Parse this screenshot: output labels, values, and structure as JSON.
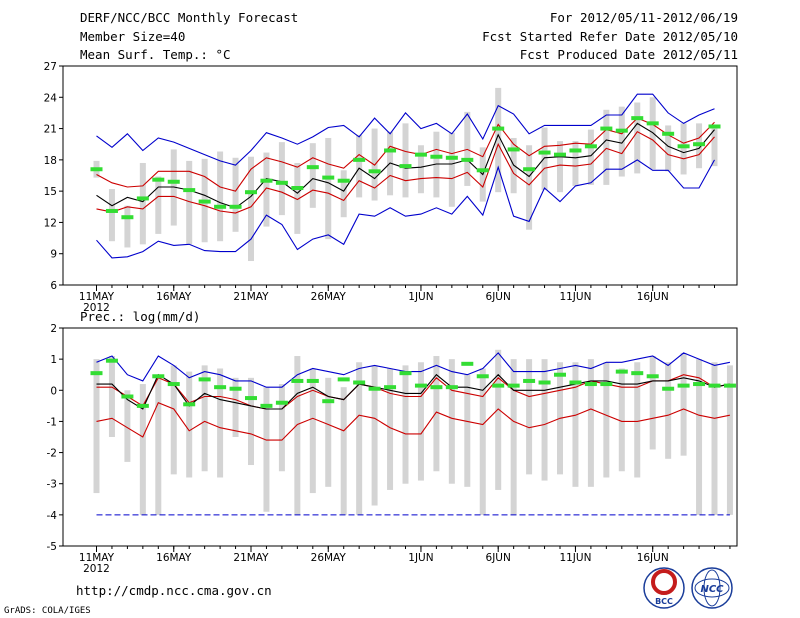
{
  "header": {
    "title": "DERF/NCC/BCC Monthly Forecast",
    "member_size": "Member Size=40",
    "temp_label": "Mean Surf. Temp.: °C",
    "period": "For 2012/05/11-2012/06/19",
    "started": "Fcst Started Refer Date 2012/05/10",
    "produced": "Fcst Produced Date 2012/05/11"
  },
  "footer": {
    "url": "http://cmdp.ncc.cma.gov.cn",
    "grads": "GrADS: COLA/IGES",
    "logo1_text": "BCC",
    "logo2_text": "NCC"
  },
  "colors": {
    "max_line": "#0000cc",
    "p_lines": "#cc0000",
    "mean": "#000000",
    "bars": "#d4d4d4",
    "obs": "#33dd33"
  },
  "chart_data": [
    {
      "type": "line",
      "title": "Mean Surf. Temp.: °C",
      "ylim": [
        6,
        27
      ],
      "yticks": [
        6,
        9,
        12,
        15,
        18,
        21,
        24,
        27
      ],
      "xtick_labels": [
        {
          "day": 1,
          "label": "11MAY",
          "sub": "2012"
        },
        {
          "day": 6,
          "label": "16MAY"
        },
        {
          "day": 11,
          "label": "21MAY"
        },
        {
          "day": 16,
          "label": "26MAY"
        },
        {
          "day": 22,
          "label": "1JUN"
        },
        {
          "day": 27,
          "label": "6JUN"
        },
        {
          "day": 32,
          "label": "11JUN"
        },
        {
          "day": 37,
          "label": "16JUN"
        }
      ],
      "series": [
        {
          "name": "max",
          "color": "blue",
          "values": [
            20.3,
            19.2,
            20.5,
            18.9,
            20.1,
            19.7,
            19.1,
            18.5,
            17.9,
            17.5,
            18.9,
            20.6,
            20.1,
            19.5,
            20.2,
            21.1,
            21.3,
            20.2,
            22.0,
            20.5,
            22.5,
            21.0,
            21.5,
            20.5,
            22.4,
            20.0,
            23.2,
            22.4,
            20.5,
            21.3,
            21.3,
            21.3,
            21.3,
            22.3,
            22.3,
            24.3,
            24.3,
            22.5,
            21.5,
            22.3,
            22.9
          ]
        },
        {
          "name": "p_high",
          "color": "red",
          "values": [
            16.6,
            15.8,
            15.4,
            15.5,
            16.9,
            16.9,
            16.9,
            16.4,
            15.4,
            15.0,
            17.1,
            18.2,
            17.8,
            17.3,
            18.2,
            17.6,
            17.2,
            18.5,
            17.5,
            19.3,
            18.8,
            18.5,
            19.0,
            18.6,
            19.0,
            18.3,
            21.4,
            19.5,
            18.4,
            19.3,
            19.4,
            19.6,
            19.5,
            20.9,
            20.5,
            22.0,
            21.4,
            20.4,
            19.6,
            20.1,
            21.6
          ]
        },
        {
          "name": "mean",
          "color": "black",
          "values": [
            14.6,
            13.6,
            14.4,
            14.0,
            15.4,
            15.4,
            15.1,
            14.6,
            13.9,
            13.4,
            14.5,
            16.2,
            15.9,
            14.8,
            16.2,
            15.8,
            15.0,
            17.2,
            16.2,
            17.7,
            17.2,
            17.3,
            17.6,
            17.6,
            18.0,
            16.6,
            20.4,
            17.5,
            16.4,
            18.2,
            18.3,
            18.2,
            18.4,
            19.9,
            19.6,
            21.5,
            20.6,
            19.3,
            18.7,
            19.1,
            20.9
          ]
        },
        {
          "name": "p_low",
          "color": "red",
          "values": [
            13.3,
            13.0,
            13.5,
            13.3,
            14.5,
            14.5,
            14.0,
            13.6,
            13.1,
            12.9,
            13.5,
            15.3,
            14.9,
            14.2,
            15.1,
            14.8,
            14.1,
            16.0,
            15.3,
            16.5,
            16.0,
            16.2,
            16.3,
            16.2,
            16.8,
            15.4,
            19.5,
            16.7,
            15.6,
            17.2,
            17.5,
            17.4,
            17.6,
            19.1,
            18.6,
            20.7,
            19.9,
            18.5,
            18.1,
            18.5,
            20.2
          ]
        },
        {
          "name": "min",
          "color": "blue",
          "values": [
            10.3,
            8.6,
            8.7,
            9.2,
            10.2,
            9.8,
            9.9,
            9.3,
            9.2,
            9.2,
            10.4,
            12.7,
            11.8,
            9.4,
            10.4,
            10.8,
            9.9,
            12.8,
            12.6,
            13.4,
            12.6,
            12.8,
            13.4,
            12.8,
            14.5,
            12.7,
            17.3,
            12.6,
            12.1,
            15.3,
            14.0,
            15.5,
            15.8,
            17.1,
            17.1,
            18.0,
            17.0,
            17.0,
            15.3,
            15.3,
            18.0
          ]
        }
      ],
      "bars": {
        "low": [
          16.3,
          10.2,
          9.6,
          9.9,
          10.9,
          11.7,
          9.9,
          10.1,
          10.2,
          11.1,
          8.3,
          11.6,
          12.7,
          10.9,
          13.4,
          10.4,
          12.5,
          14.4,
          14.1,
          14.6,
          14.4,
          14.8,
          14.4,
          13.5,
          15.5,
          14.0,
          14.9,
          14.8,
          11.3,
          15.1,
          14.9,
          15.5,
          15.6,
          15.6,
          16.4,
          16.7,
          17.1,
          16.9,
          16.6,
          17.2,
          17.4
        ],
        "high": [
          17.9,
          15.2,
          13.6,
          17.7,
          16.4,
          19.0,
          17.9,
          18.1,
          18.8,
          18.2,
          18.3,
          18.7,
          19.7,
          17.7,
          19.6,
          20.1,
          17.0,
          20.4,
          21.0,
          20.7,
          21.5,
          19.4,
          20.7,
          20.6,
          22.6,
          19.2,
          24.9,
          20.1,
          19.4,
          21.1,
          19.8,
          19.8,
          20.9,
          22.8,
          23.1,
          23.5,
          24.0,
          21.3,
          21.5,
          21.5,
          21.0
        ]
      },
      "obs": [
        17.1,
        13.1,
        12.5,
        14.3,
        16.1,
        15.9,
        15.1,
        14.0,
        13.5,
        13.5,
        14.9,
        16.0,
        15.8,
        15.3,
        17.3,
        16.3,
        16.0,
        18.0,
        16.9,
        18.9,
        17.4,
        18.5,
        18.3,
        18.2,
        18.0,
        17.0,
        21.0,
        19.0,
        17.1,
        18.7,
        18.5,
        18.9,
        19.3,
        21.0,
        20.8,
        22.0,
        21.5,
        20.5,
        19.3,
        19.5,
        21.2
      ]
    },
    {
      "type": "line",
      "title": "Prec.: log(mm/d)",
      "ylim": [
        -5,
        2
      ],
      "yticks": [
        -5,
        -4,
        -3,
        -2,
        -1,
        0,
        1,
        2
      ],
      "xtick_labels": [
        {
          "day": 1,
          "label": "11MAY",
          "sub": "2012"
        },
        {
          "day": 6,
          "label": "16MAY"
        },
        {
          "day": 11,
          "label": "21MAY"
        },
        {
          "day": 16,
          "label": "26MAY"
        },
        {
          "day": 22,
          "label": "1JUN"
        },
        {
          "day": 27,
          "label": "6JUN"
        },
        {
          "day": 32,
          "label": "11JUN"
        },
        {
          "day": 37,
          "label": "16JUN"
        }
      ],
      "series": [
        {
          "name": "max",
          "color": "blue",
          "values": [
            0.9,
            1.1,
            0.5,
            0.3,
            1.1,
            0.8,
            0.4,
            0.6,
            0.5,
            0.3,
            0.3,
            0.1,
            0.1,
            0.5,
            0.7,
            0.6,
            0.5,
            0.7,
            0.8,
            0.7,
            0.6,
            0.6,
            0.8,
            0.6,
            0.5,
            0.7,
            1.2,
            0.6,
            0.6,
            0.6,
            0.7,
            0.8,
            0.7,
            0.9,
            0.9,
            1.0,
            1.1,
            0.8,
            1.2,
            1.0,
            0.8,
            0.9
          ]
        },
        {
          "name": "p_high",
          "color": "red",
          "values": [
            0.1,
            0.1,
            -0.2,
            -0.5,
            0.4,
            0.2,
            -0.4,
            -0.2,
            -0.2,
            -0.3,
            -0.5,
            -0.6,
            -0.6,
            -0.2,
            0.0,
            -0.2,
            -0.3,
            0.2,
            0.1,
            -0.1,
            -0.2,
            -0.2,
            0.4,
            0.0,
            -0.1,
            -0.2,
            0.4,
            0.0,
            -0.2,
            -0.1,
            0.0,
            0.1,
            0.3,
            0.2,
            0.1,
            0.1,
            0.3,
            0.3,
            0.5,
            0.4,
            0.1,
            0.2
          ]
        },
        {
          "name": "mean",
          "color": "black",
          "values": [
            0.2,
            0.2,
            -0.3,
            -0.6,
            0.5,
            0.2,
            -0.5,
            -0.1,
            -0.3,
            -0.4,
            -0.5,
            -0.6,
            -0.6,
            -0.1,
            0.1,
            -0.2,
            -0.3,
            0.2,
            0.1,
            0.0,
            -0.1,
            -0.1,
            0.5,
            0.1,
            0.1,
            0.0,
            0.5,
            0.0,
            0.0,
            0.0,
            0.1,
            0.2,
            0.3,
            0.3,
            0.2,
            0.2,
            0.3,
            0.3,
            0.4,
            0.3,
            0.1,
            0.2
          ]
        },
        {
          "name": "p_low",
          "color": "red",
          "values": [
            -1.0,
            -0.9,
            -1.2,
            -1.5,
            -0.4,
            -0.6,
            -1.3,
            -1.0,
            -1.2,
            -1.3,
            -1.4,
            -1.6,
            -1.6,
            -1.1,
            -0.9,
            -1.1,
            -1.3,
            -0.8,
            -0.9,
            -1.2,
            -1.4,
            -1.4,
            -0.7,
            -0.9,
            -1.0,
            -1.1,
            -0.6,
            -1.0,
            -1.2,
            -1.1,
            -0.9,
            -0.8,
            -0.6,
            -0.8,
            -1.0,
            -1.0,
            -0.9,
            -0.8,
            -0.6,
            -0.8,
            -0.9,
            -0.8
          ]
        },
        {
          "name": "min",
          "color": "blue",
          "values": [
            -4.0,
            -4.0,
            -4.0,
            -4.0,
            -4.0,
            -4.0,
            -4.0,
            -4.0,
            -4.0,
            -4.0,
            -4.0,
            -4.0,
            -4.0,
            -4.0,
            -4.0,
            -4.0,
            -4.0,
            -4.0,
            -4.0,
            -4.0,
            -4.0,
            -4.0,
            -4.0,
            -4.0,
            -4.0,
            -4.0,
            -4.0,
            -4.0,
            -4.0,
            -4.0,
            -4.0,
            -4.0,
            -4.0,
            -4.0,
            -4.0,
            -4.0,
            -4.0,
            -4.0,
            -4.0,
            -4.0,
            -4.0,
            -4.0
          ]
        }
      ],
      "bars": {
        "low": [
          -3.3,
          -1.5,
          -2.3,
          -4.0,
          -4.0,
          -2.7,
          -2.8,
          -2.6,
          -2.8,
          -1.5,
          -2.4,
          -3.9,
          -2.6,
          -4.0,
          -3.3,
          -3.1,
          -4.0,
          -4.0,
          -3.7,
          -3.2,
          -3.0,
          -2.9,
          -2.6,
          -3.0,
          -3.1,
          -4.0,
          -3.2,
          -4.0,
          -2.7,
          -2.9,
          -2.7,
          -3.1,
          -3.1,
          -2.8,
          -2.6,
          -2.8,
          -1.9,
          -2.2,
          -2.1,
          -4.0,
          -4.0,
          -4.0
        ],
        "high": [
          1.0,
          1.1,
          0.0,
          0.2,
          0.4,
          0.8,
          0.6,
          0.8,
          0.7,
          0.4,
          0.4,
          0.1,
          0.2,
          1.1,
          0.7,
          0.4,
          0.1,
          0.9,
          0.8,
          0.7,
          0.8,
          0.9,
          1.1,
          1.0,
          0.5,
          0.7,
          1.3,
          1.0,
          1.0,
          1.0,
          0.9,
          0.9,
          1.0,
          0.9,
          0.7,
          0.9,
          1.1,
          0.9,
          1.2,
          1.0,
          0.9,
          0.8
        ]
      },
      "obs": [
        0.55,
        0.95,
        -0.2,
        -0.5,
        0.45,
        0.2,
        -0.45,
        0.35,
        0.1,
        0.05,
        -0.25,
        -0.5,
        -0.4,
        0.3,
        0.3,
        -0.35,
        0.35,
        0.25,
        0.05,
        0.1,
        0.55,
        0.15,
        0.1,
        0.1,
        0.85,
        0.45,
        0.15,
        0.15,
        0.3,
        0.25,
        0.5,
        0.25,
        0.2,
        0.2,
        0.6,
        0.55,
        0.45,
        0.05,
        0.15,
        0.2,
        0.15,
        0.15
      ]
    }
  ]
}
